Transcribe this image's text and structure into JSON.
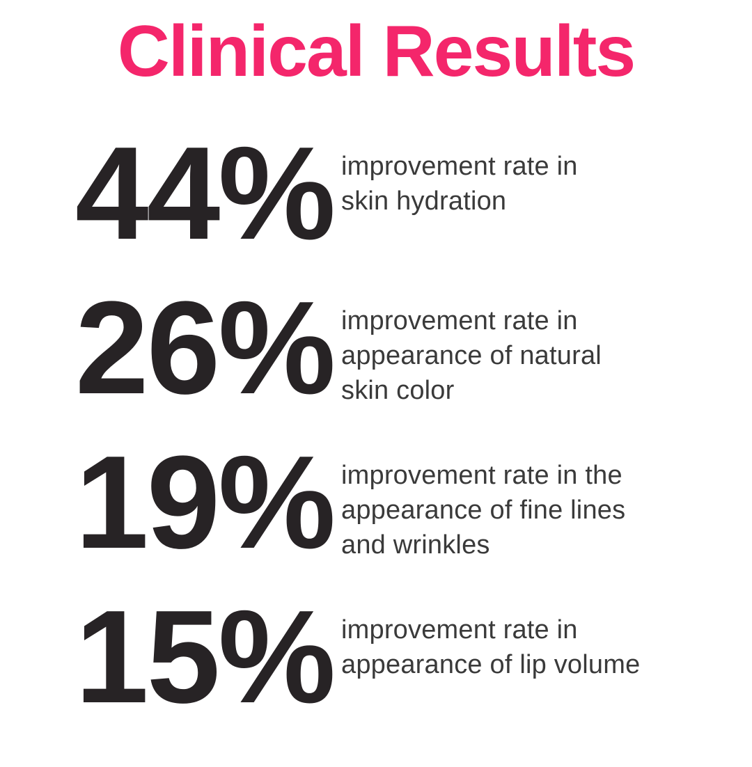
{
  "title": "Clinical Results",
  "stats": [
    {
      "value": "44%",
      "description": "improvement rate in\nskin hydration"
    },
    {
      "value": "26%",
      "description": "improvement rate in\nappearance of natural\nskin color"
    },
    {
      "value": "19%",
      "description": "improvement rate in the\nappearance of fine lines\nand wrinkles"
    },
    {
      "value": "15%",
      "description": "improvement rate in\nappearance of lip volume"
    }
  ],
  "colors": {
    "accent": "#F4266B",
    "stat_number": "#272325",
    "stat_text": "#3A3A3A",
    "background": "#FFFFFF"
  },
  "chart_data": {
    "type": "table",
    "title": "Clinical Results",
    "categories": [
      "skin hydration",
      "appearance of natural skin color",
      "appearance of fine lines and wrinkles",
      "appearance of lip volume"
    ],
    "values": [
      44,
      26,
      19,
      15
    ],
    "unit": "%",
    "value_label": "improvement rate"
  }
}
